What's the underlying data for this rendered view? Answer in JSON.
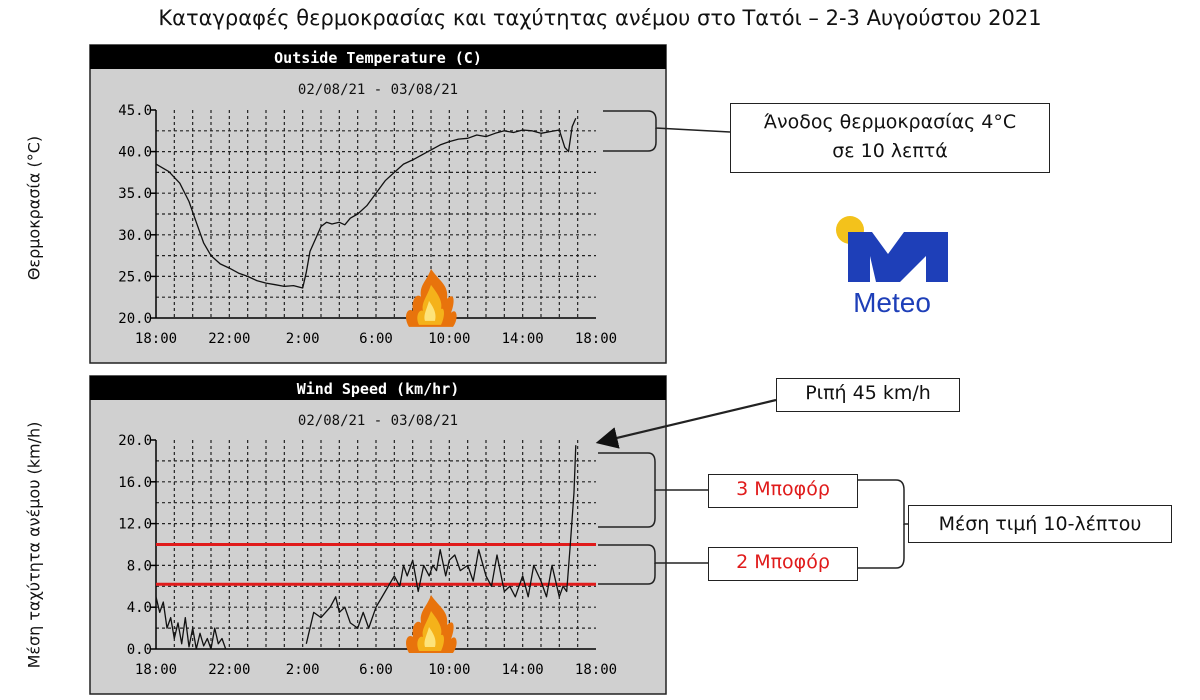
{
  "title": "Καταγραφές θερμοκρασίας και ταχύτητας ανέμου στο Τατόι – 2-3 Αυγούστου 2021",
  "chart_data": [
    {
      "type": "line",
      "title": "Outside Temperature (C)",
      "subtitle": "02/08/21 - 03/08/21",
      "ylabel": "Θερμοκρασία (°C)",
      "xlabel": "",
      "x_ticks": [
        "18:00",
        "22:00",
        "2:00",
        "6:00",
        "10:00",
        "14:00",
        "18:00"
      ],
      "y_ticks": [
        "20.0",
        "25.0",
        "30.0",
        "35.0",
        "40.0",
        "45.0"
      ],
      "ylim": [
        20,
        45
      ],
      "xlim_hours": [
        0,
        24
      ],
      "grid": true,
      "series": [
        {
          "x": [
            0,
            0.7,
            1.3,
            1.8,
            2.2,
            2.6,
            3,
            3.5,
            4,
            4.5,
            5,
            5.5,
            6,
            6.5,
            7,
            7.5,
            8,
            8.2,
            8.4,
            8.7,
            9,
            9.3,
            9.6,
            10,
            10.3,
            10.6,
            11,
            11.5,
            12,
            12.5,
            13,
            13.5,
            14,
            14.5,
            15,
            15.5,
            16,
            16.5,
            17,
            17.5,
            18,
            18.5,
            19,
            19.5,
            20,
            20.5,
            21,
            21.5,
            22,
            22.3,
            22.5,
            22.7,
            22.9
          ],
          "y": [
            38.5,
            37.6,
            36.2,
            34,
            31.5,
            29,
            27.5,
            26.5,
            26,
            25.4,
            25,
            24.5,
            24.2,
            24,
            23.8,
            23.9,
            23.6,
            25.5,
            28,
            29.5,
            31,
            31.5,
            31.3,
            31.5,
            31.2,
            32,
            32.5,
            33.5,
            35,
            36.5,
            37.5,
            38.5,
            39,
            39.6,
            40.2,
            40.8,
            41.2,
            41.5,
            41.6,
            42,
            41.8,
            42.2,
            42.5,
            42.3,
            42.6,
            42.5,
            42.2,
            42.4,
            42.6,
            40.5,
            40,
            43,
            44
          ]
        }
      ]
    },
    {
      "type": "line",
      "title": "Wind Speed (km/hr)",
      "subtitle": "02/08/21 - 03/08/21",
      "ylabel": "Μέση ταχύτητα ανέμου (km/h)",
      "xlabel": "",
      "x_ticks": [
        "18:00",
        "22:00",
        "2:00",
        "6:00",
        "10:00",
        "14:00",
        "18:00"
      ],
      "y_ticks": [
        "0.0",
        "4.0",
        "8.0",
        "12.0",
        "16.0",
        "20.0"
      ],
      "ylim": [
        0,
        20
      ],
      "xlim_hours": [
        0,
        24
      ],
      "grid": true,
      "reference_lines": [
        {
          "y": 10.0,
          "color": "#e01b1b"
        },
        {
          "y": 6.2,
          "color": "#e01b1b"
        }
      ],
      "series": [
        {
          "x": [
            0,
            0.2,
            0.4,
            0.6,
            0.8,
            1,
            1.2,
            1.4,
            1.6,
            1.8,
            2,
            2.2,
            2.4,
            2.6,
            2.8,
            3,
            3.2,
            3.4,
            3.6,
            3.8,
            4.0
          ],
          "y": [
            5,
            3.5,
            4.5,
            2,
            3,
            1,
            2.5,
            0.5,
            3,
            0.2,
            2,
            0,
            1.5,
            0.3,
            1,
            0,
            2,
            0.5,
            1,
            0,
            0
          ]
        },
        {
          "x": [
            8.2,
            8.6,
            9,
            9.5,
            9.8,
            10,
            10.3,
            10.6,
            11,
            11.3,
            11.6,
            12,
            12.5,
            13,
            13.3,
            13.5,
            13.7,
            14,
            14.3,
            14.6,
            14.9,
            15.1,
            15.3,
            15.5,
            15.8,
            16,
            16.3,
            16.6,
            17,
            17.3,
            17.6,
            18,
            18.3,
            18.6,
            19,
            19.3,
            19.6,
            20,
            20.3,
            20.6,
            21,
            21.3,
            21.6,
            22,
            22.2,
            22.4,
            22.6,
            22.8,
            22.9
          ],
          "y": [
            0.5,
            3.5,
            3,
            4,
            5,
            3.5,
            4,
            2.5,
            2,
            3.5,
            2,
            4,
            5.5,
            7,
            6,
            8,
            7,
            8.5,
            5.5,
            8,
            7,
            8,
            7.5,
            9.5,
            7,
            8.5,
            9,
            7.5,
            8,
            6.5,
            9.5,
            7,
            6,
            9,
            5.5,
            6,
            5,
            7,
            5,
            8,
            6.5,
            5,
            8,
            5,
            6,
            5.5,
            10,
            15,
            19.5
          ]
        }
      ]
    }
  ],
  "annotations": {
    "temp_callout": [
      "Άνοδος θερμοκρασίας 4°C",
      "σε 10 λεπτά"
    ],
    "gust_callout": "Ριπή 45 km/h",
    "beaufort3": "3 Μποφόρ",
    "beaufort2": "2 Μποφόρ",
    "mean_label": "Μέση τιμή 10-λέπτου"
  },
  "logo": {
    "text": "Meteo",
    "sun_color": "#f3c21b",
    "m_color": "#1e3fb8",
    "text_color": "#1e3fb8",
    "icon": "meteo-logo-icon"
  },
  "fire_icon": "fire-icon"
}
